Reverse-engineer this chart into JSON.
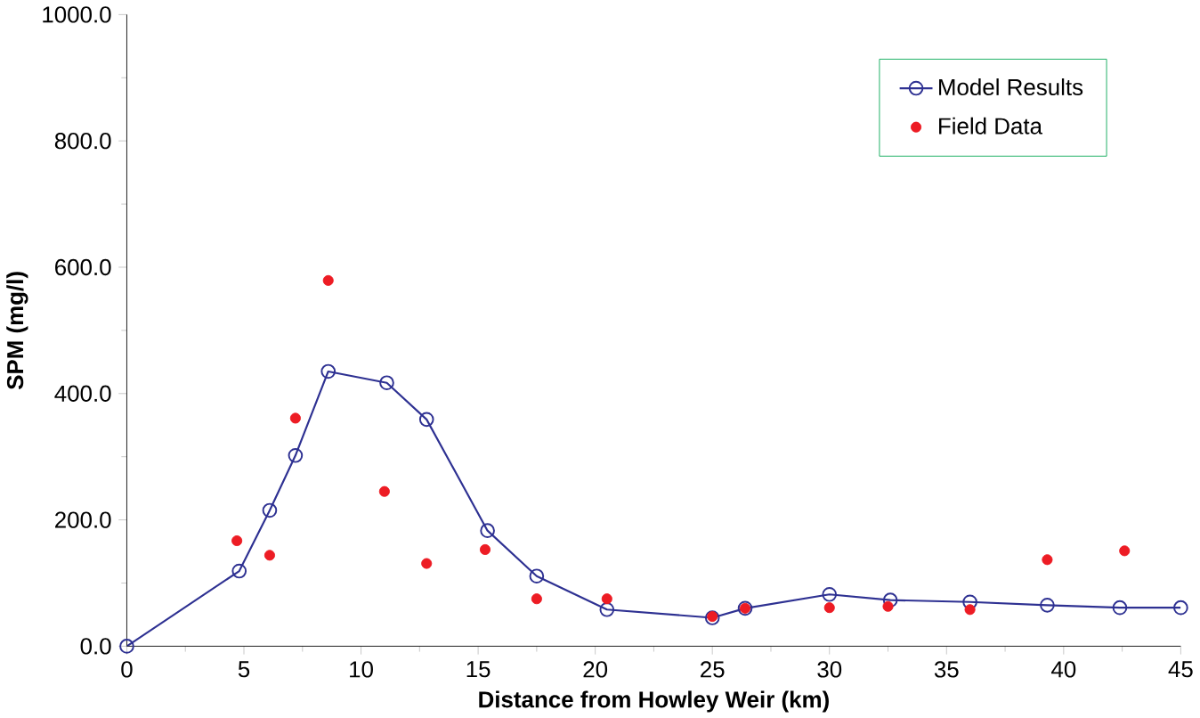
{
  "chart_data": {
    "type": "line",
    "xlabel": "Distance from Howley Weir (km)",
    "ylabel": "SPM (mg/l)",
    "xlim": [
      0,
      45
    ],
    "ylim": [
      0,
      1000
    ],
    "xticks": [
      0,
      5,
      10,
      15,
      20,
      25,
      30,
      35,
      40,
      45
    ],
    "yticks": [
      {
        "value": 0,
        "label": "0.0"
      },
      {
        "value": 200,
        "label": "200.0"
      },
      {
        "value": 400,
        "label": "400.0"
      },
      {
        "value": 600,
        "label": "600.0"
      },
      {
        "value": 800,
        "label": "800.0"
      },
      {
        "value": 1000,
        "label": "1000.0"
      }
    ],
    "legend": "top right",
    "grid": false,
    "series": [
      {
        "name": "Model Results",
        "color": "#2e3192",
        "marker": "circle",
        "line_style": "solid",
        "x": [
          0,
          4.8,
          6.1,
          7.2,
          8.6,
          11.1,
          12.8,
          15.4,
          17.5,
          20.5,
          25,
          26.4,
          30,
          32.6,
          36,
          39.3,
          42.4,
          45
        ],
        "values": [
          0,
          119,
          215,
          302,
          435,
          417,
          359,
          183,
          111,
          58,
          45,
          60,
          82,
          73,
          70,
          65,
          61,
          61
        ]
      },
      {
        "name": "Field Data",
        "type": "scatter",
        "color": "#ed1c24",
        "marker": "circle",
        "x": [
          4.7,
          6.1,
          7.2,
          8.6,
          11.0,
          12.8,
          15.3,
          17.5,
          20.5,
          25,
          26.4,
          30,
          32.5,
          36,
          39.3,
          42.6
        ],
        "values": [
          167,
          144,
          361,
          579,
          245,
          131,
          153,
          75,
          75,
          47,
          60,
          61,
          63,
          58,
          137,
          151
        ]
      }
    ]
  }
}
